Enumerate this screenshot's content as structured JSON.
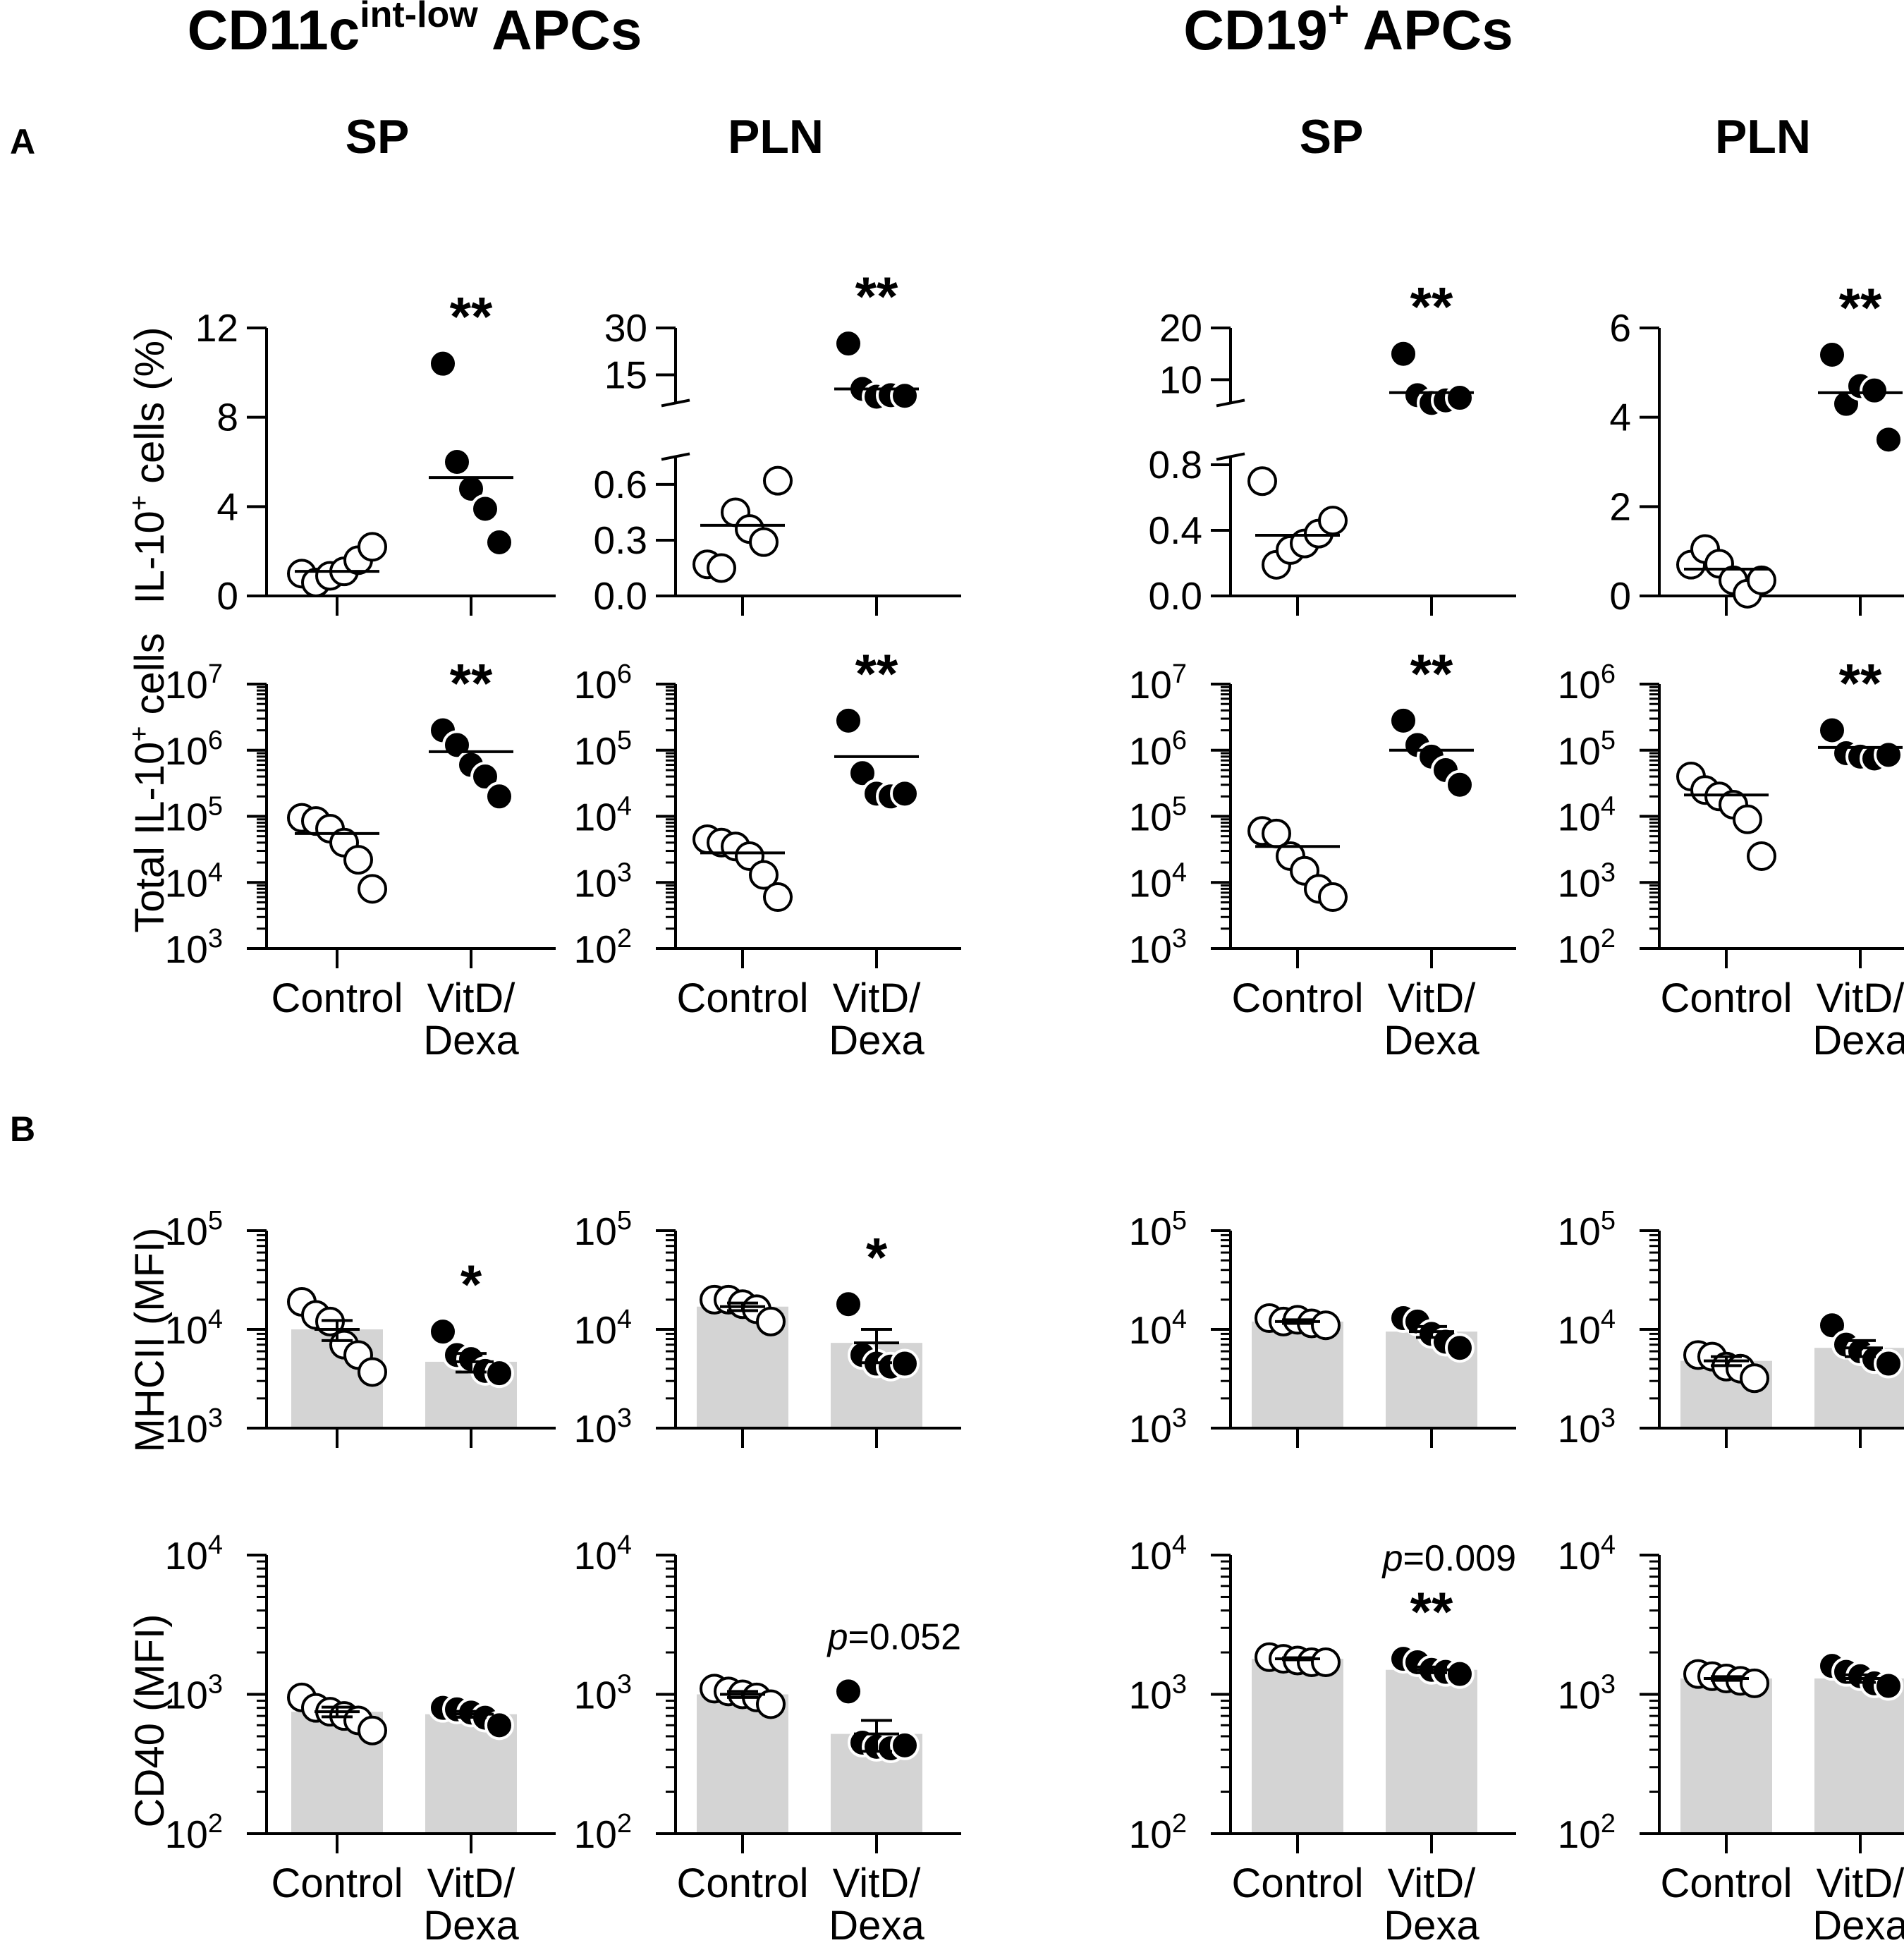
{
  "headers": {
    "left_group": {
      "main": "CD11c",
      "sup": "int-low",
      "tail": " APCs"
    },
    "right_group": {
      "main": "CD19",
      "sup": "+",
      "tail": " APCs"
    },
    "columns": [
      "SP",
      "PLN",
      "SP",
      "PLN"
    ],
    "panel_a": "A",
    "panel_b": "B"
  },
  "ylabels": {
    "row1": {
      "pre": "IL-10",
      "sup": "+",
      "post": " cells (%)"
    },
    "row2": {
      "pre": "Total IL-10",
      "sup": "+",
      "post": " cells"
    },
    "row3": "MHCII (MFI)",
    "row4": "CD40 (MFI)"
  },
  "xlabels": {
    "control": "Control",
    "treat_line1": "VitD/",
    "treat_line2": "Dexa"
  },
  "colors": {
    "control_fill": "#ffffff",
    "treated_fill": "#000000",
    "bar_fill": "#d4d4d4",
    "axis": "#000000"
  },
  "chart_data": [
    {
      "id": "a1_sp_cd11c",
      "type": "scatter",
      "scale": "linear",
      "ylabel": "IL-10+ cells (%)",
      "ylim": [
        0,
        12
      ],
      "yticks": [
        0,
        4,
        8,
        12
      ],
      "series": [
        {
          "name": "Control",
          "values": [
            1.0,
            0.6,
            0.9,
            1.1,
            1.6,
            2.2
          ],
          "mean": 1.1
        },
        {
          "name": "VitD/Dexa",
          "values": [
            10.4,
            6.0,
            4.8,
            3.9,
            2.4
          ],
          "mean": 5.3
        }
      ],
      "annotation": "**"
    },
    {
      "id": "a1_pln_cd11c",
      "type": "scatter",
      "scale": "broken",
      "ylim": [
        0,
        30
      ],
      "lower_range": [
        0,
        0.75
      ],
      "lower_ticks": [
        0.0,
        0.3,
        0.6
      ],
      "upper_range": [
        6,
        30
      ],
      "upper_ticks": [
        15,
        30
      ],
      "series": [
        {
          "name": "Control",
          "values": [
            0.17,
            0.15,
            0.45,
            0.36,
            0.29,
            0.62
          ],
          "mean": 0.38
        },
        {
          "name": "VitD/Dexa",
          "values": [
            25,
            10.5,
            8.0,
            8.5,
            8.3
          ],
          "mean": 10.5
        }
      ],
      "annotation": "**"
    },
    {
      "id": "a1_sp_cd19",
      "type": "scatter",
      "scale": "broken",
      "ylim": [
        0,
        20
      ],
      "lower_range": [
        0,
        0.85
      ],
      "lower_ticks": [
        0.0,
        0.4,
        0.8
      ],
      "upper_range": [
        5.5,
        20
      ],
      "upper_ticks": [
        10,
        20
      ],
      "series": [
        {
          "name": "Control",
          "values": [
            0.7,
            0.19,
            0.28,
            0.32,
            0.38,
            0.46
          ],
          "mean": 0.37
        },
        {
          "name": "VitD/Dexa",
          "values": [
            15,
            7.0,
            5.5,
            6.0,
            6.5
          ],
          "mean": 7.5
        }
      ],
      "annotation": "**"
    },
    {
      "id": "a1_pln_cd19",
      "type": "scatter",
      "scale": "linear",
      "ylim": [
        0,
        6
      ],
      "yticks": [
        0,
        2,
        4,
        6
      ],
      "series": [
        {
          "name": "Control",
          "values": [
            0.7,
            1.05,
            0.72,
            0.35,
            0.05,
            0.35
          ],
          "mean": 0.6
        },
        {
          "name": "VitD/Dexa",
          "values": [
            5.4,
            4.3,
            4.7,
            4.6,
            3.5
          ],
          "mean": 4.55
        }
      ],
      "annotation": "**"
    },
    {
      "id": "a2_sp_cd11c",
      "type": "scatter",
      "scale": "log",
      "ylim": [
        1000,
        10000000
      ],
      "yticks": [
        3,
        4,
        5,
        6,
        7
      ],
      "series": [
        {
          "name": "Control",
          "values": [
            95000,
            85000,
            65000,
            40000,
            22000,
            8000
          ],
          "mean": 55000
        },
        {
          "name": "VitD/Dexa",
          "values": [
            2000000,
            1200000,
            600000,
            400000,
            200000
          ],
          "mean": 950000
        }
      ],
      "annotation": "**"
    },
    {
      "id": "a2_pln_cd11c",
      "type": "scatter",
      "scale": "log",
      "ylim": [
        100,
        1000000
      ],
      "yticks": [
        2,
        3,
        4,
        5,
        6
      ],
      "series": [
        {
          "name": "Control",
          "values": [
            4500,
            4000,
            3500,
            2500,
            1300,
            600
          ],
          "mean": 2800
        },
        {
          "name": "VitD/Dexa",
          "values": [
            280000,
            45000,
            22000,
            20000,
            22000
          ],
          "mean": 80000
        }
      ],
      "annotation": "**"
    },
    {
      "id": "a2_sp_cd19",
      "type": "scatter",
      "scale": "log",
      "ylim": [
        1000,
        10000000
      ],
      "yticks": [
        3,
        4,
        5,
        6,
        7
      ],
      "series": [
        {
          "name": "Control",
          "values": [
            60000,
            55000,
            25000,
            15000,
            8000,
            6000
          ],
          "mean": 35000
        },
        {
          "name": "VitD/Dexa",
          "values": [
            2800000,
            1200000,
            800000,
            500000,
            300000
          ],
          "mean": 1000000
        }
      ],
      "annotation": "**"
    },
    {
      "id": "a2_pln_cd19",
      "type": "scatter",
      "scale": "log",
      "ylim": [
        100,
        1000000
      ],
      "yticks": [
        2,
        3,
        4,
        5,
        6
      ],
      "series": [
        {
          "name": "Control",
          "values": [
            40000,
            25000,
            20000,
            15000,
            9000,
            2500
          ],
          "mean": 21000
        },
        {
          "name": "VitD/Dexa",
          "values": [
            200000,
            90000,
            80000,
            75000,
            85000
          ],
          "mean": 110000
        }
      ],
      "annotation": "**"
    },
    {
      "id": "b1_sp_cd11c",
      "type": "bar_scatter",
      "scale": "log",
      "ylim": [
        1000,
        100000
      ],
      "yticks": [
        3,
        4,
        5
      ],
      "series": [
        {
          "name": "Control",
          "values": [
            19000,
            14000,
            12000,
            7000,
            5500,
            3700
          ],
          "mean": 10000,
          "sem": 2300
        },
        {
          "name": "VitD/Dexa",
          "values": [
            9500,
            5500,
            5000,
            3800,
            3600
          ],
          "mean": 4700,
          "sem": 1000
        }
      ],
      "annotation": "*"
    },
    {
      "id": "b1_pln_cd11c",
      "type": "bar_scatter",
      "scale": "log",
      "ylim": [
        1000,
        100000
      ],
      "yticks": [
        3,
        4,
        5
      ],
      "series": [
        {
          "name": "Control",
          "values": [
            20000,
            20000,
            18000,
            16000,
            12000
          ],
          "mean": 17000,
          "sem": 1500
        },
        {
          "name": "VitD/Dexa",
          "values": [
            18000,
            5500,
            4500,
            4200,
            4500
          ],
          "mean": 7300,
          "sem": 2700
        }
      ],
      "annotation": "*"
    },
    {
      "id": "b1_sp_cd19",
      "type": "bar_scatter",
      "scale": "log",
      "ylim": [
        1000,
        100000
      ],
      "yticks": [
        3,
        4,
        5
      ],
      "series": [
        {
          "name": "Control",
          "values": [
            13000,
            12000,
            12500,
            11500,
            11000
          ],
          "mean": 12000,
          "sem": 500
        },
        {
          "name": "VitD/Dexa",
          "values": [
            13000,
            12000,
            9000,
            7500,
            6500
          ],
          "mean": 9500,
          "sem": 1200
        }
      ],
      "annotation": ""
    },
    {
      "id": "b1_pln_cd19",
      "type": "bar_scatter",
      "scale": "log",
      "ylim": [
        1000,
        100000
      ],
      "yticks": [
        3,
        4,
        5
      ],
      "series": [
        {
          "name": "Control",
          "values": [
            5500,
            5300,
            4200,
            4000,
            3200
          ],
          "mean": 4800,
          "sem": 500
        },
        {
          "name": "VitD/Dexa",
          "values": [
            11000,
            7000,
            6000,
            5000,
            4500
          ],
          "mean": 6500,
          "sem": 1200
        }
      ],
      "annotation": ""
    },
    {
      "id": "b2_sp_cd11c",
      "type": "bar_scatter",
      "scale": "log",
      "ylim": [
        100,
        10000
      ],
      "yticks": [
        2,
        3,
        4
      ],
      "series": [
        {
          "name": "Control",
          "values": [
            950,
            800,
            750,
            700,
            650,
            550
          ],
          "mean": 750,
          "sem": 60
        },
        {
          "name": "VitD/Dexa",
          "values": [
            800,
            780,
            740,
            680,
            600
          ],
          "mean": 720,
          "sem": 35
        }
      ],
      "annotation": ""
    },
    {
      "id": "b2_pln_cd11c",
      "type": "bar_scatter",
      "scale": "log",
      "ylim": [
        100,
        10000
      ],
      "yticks": [
        2,
        3,
        4
      ],
      "series": [
        {
          "name": "Control",
          "values": [
            1100,
            1050,
            1000,
            950,
            850
          ],
          "mean": 1000,
          "sem": 50
        },
        {
          "name": "VitD/Dexa",
          "values": [
            1050,
            450,
            420,
            410,
            430
          ],
          "mean": 520,
          "sem": 130
        }
      ],
      "annotation": "p=0.052"
    },
    {
      "id": "b2_sp_cd19",
      "type": "bar_scatter",
      "scale": "log",
      "ylim": [
        100,
        10000
      ],
      "yticks": [
        2,
        3,
        4
      ],
      "series": [
        {
          "name": "Control",
          "values": [
            1850,
            1800,
            1750,
            1700,
            1700
          ],
          "mean": 1800,
          "sem": 30
        },
        {
          "name": "VitD/Dexa",
          "values": [
            1800,
            1700,
            1500,
            1450,
            1400
          ],
          "mean": 1500,
          "sem": 70
        }
      ],
      "annotation": "**",
      "p_label": "p=0.009"
    },
    {
      "id": "b2_pln_cd19",
      "type": "bar_scatter",
      "scale": "log",
      "ylim": [
        100,
        10000
      ],
      "yticks": [
        2,
        3,
        4
      ],
      "series": [
        {
          "name": "Control",
          "values": [
            1400,
            1350,
            1300,
            1250,
            1200
          ],
          "mean": 1300,
          "sem": 40
        },
        {
          "name": "VitD/Dexa",
          "values": [
            1600,
            1450,
            1350,
            1200,
            1150
          ],
          "mean": 1300,
          "sem": 80
        }
      ],
      "annotation": ""
    }
  ]
}
